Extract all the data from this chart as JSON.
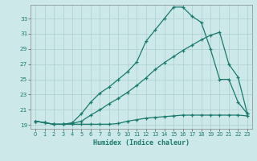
{
  "xlabel": "Humidex (Indice chaleur)",
  "bg_color": "#cce8e8",
  "line_color": "#1a7a6e",
  "grid_color": "#aacfcf",
  "xlim": [
    -0.5,
    23.5
  ],
  "ylim": [
    18.5,
    34.8
  ],
  "yticks": [
    19,
    21,
    23,
    25,
    27,
    29,
    31,
    33
  ],
  "xticks": [
    0,
    1,
    2,
    3,
    4,
    5,
    6,
    7,
    8,
    9,
    10,
    11,
    12,
    13,
    14,
    15,
    16,
    17,
    18,
    19,
    20,
    21,
    22,
    23
  ],
  "line1_x": [
    0,
    1,
    2,
    3,
    4,
    5,
    6,
    7,
    8,
    9,
    10,
    11,
    12,
    13,
    14,
    15,
    16,
    17,
    18,
    19,
    20,
    21,
    22,
    23
  ],
  "line1_y": [
    19.5,
    19.3,
    19.1,
    19.1,
    19.1,
    19.1,
    19.1,
    19.1,
    19.1,
    19.2,
    19.5,
    19.7,
    19.9,
    20.0,
    20.1,
    20.2,
    20.3,
    20.3,
    20.3,
    20.3,
    20.3,
    20.3,
    20.3,
    20.2
  ],
  "line2_x": [
    0,
    1,
    2,
    3,
    4,
    5,
    6,
    7,
    8,
    9,
    10,
    11,
    12,
    13,
    14,
    15,
    16,
    17,
    18,
    19,
    20,
    21,
    22,
    23
  ],
  "line2_y": [
    19.5,
    19.3,
    19.1,
    19.1,
    19.2,
    19.5,
    20.3,
    21.0,
    21.8,
    22.5,
    23.3,
    24.2,
    25.2,
    26.3,
    27.2,
    28.0,
    28.8,
    29.5,
    30.2,
    30.8,
    31.2,
    27.0,
    25.3,
    20.5
  ],
  "line3_x": [
    0,
    1,
    2,
    3,
    4,
    5,
    6,
    7,
    8,
    9,
    10,
    11,
    12,
    13,
    14,
    15,
    16,
    17,
    18,
    19,
    20,
    21,
    22,
    23
  ],
  "line3_y": [
    19.5,
    19.3,
    19.1,
    19.1,
    19.3,
    20.5,
    22.0,
    23.2,
    24.0,
    25.0,
    26.0,
    27.3,
    30.0,
    31.5,
    33.0,
    34.5,
    34.5,
    33.3,
    32.5,
    29.0,
    25.0,
    25.0,
    22.0,
    20.5
  ]
}
